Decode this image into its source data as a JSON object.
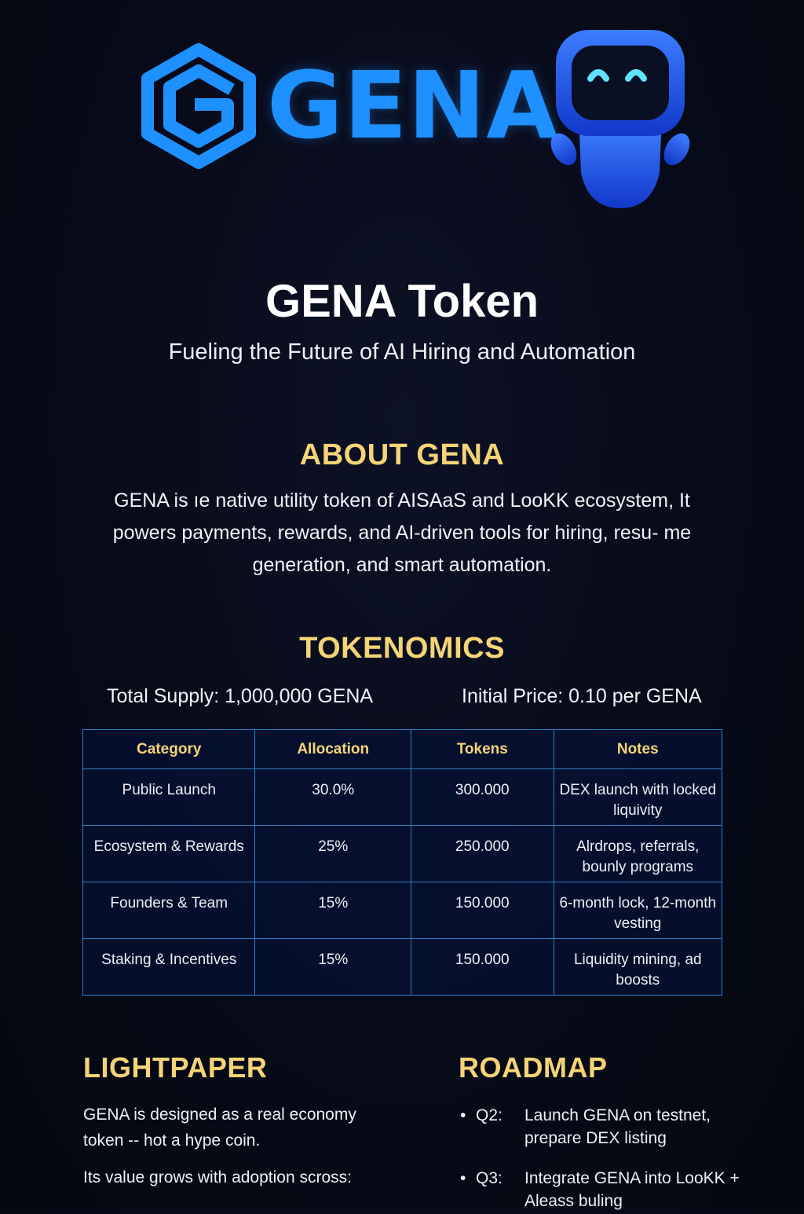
{
  "brand": {
    "wordmark": "GENA",
    "logo_icon": "hexagon-g-logo-icon",
    "mascot_icon": "blue-robot-mascot",
    "accent": "#1e90ff",
    "heading_color": "#f5d478",
    "background": "#070a18"
  },
  "hero": {
    "title": "GENA Token",
    "subtitle": "Fueling the Future of AI Hiring and Automation"
  },
  "about": {
    "title": "ABOUT GENA",
    "text": "GENA is ıe native utility token of AISAaS and LooKK ecosystem, It powers payments, rewards, and AI-driven tools for hiring, resu- me generation, and smart automation."
  },
  "tokenomics": {
    "title": "TOKENOMICS",
    "total_supply": "Total Supply: 1,000,000 GENA",
    "initial_price": "Initial Price: 0.10 per GENA",
    "headers": [
      "Category",
      "Allocation",
      "Tokens",
      "Notes"
    ],
    "rows": [
      {
        "category": "Public Launch",
        "allocation": "30.0%",
        "tokens": "300.000",
        "notes": "DEX launch with locked liquivity"
      },
      {
        "category": "Ecosystem & Rewards",
        "allocation": "25%",
        "tokens": "250.000",
        "notes": "Alrdrops, referrals, bounly programs"
      },
      {
        "category": "Founders & Team",
        "allocation": "15%",
        "tokens": "150.000",
        "notes": "6-month lock, 12-month vesting"
      },
      {
        "category": "Staking & Incentives",
        "allocation": "15%",
        "tokens": "150.000",
        "notes": "Liquidity mining, ad boosts"
      }
    ]
  },
  "lightpaper": {
    "title": "LIGHTPAPER",
    "text1": "GENA is designed as a real economy token -- hot a hype coin.",
    "text2": "Its value grows with adoption scross:"
  },
  "roadmap": {
    "title": "ROADMAP",
    "items": [
      {
        "bullet": "•",
        "quarter": "Q2:",
        "text": "Launch GENA on testnet, prepare DEX listing"
      },
      {
        "bullet": "•",
        "quarter": "Q3:",
        "text": "Integrate GENA into LooKK + Aleass buling"
      }
    ]
  }
}
